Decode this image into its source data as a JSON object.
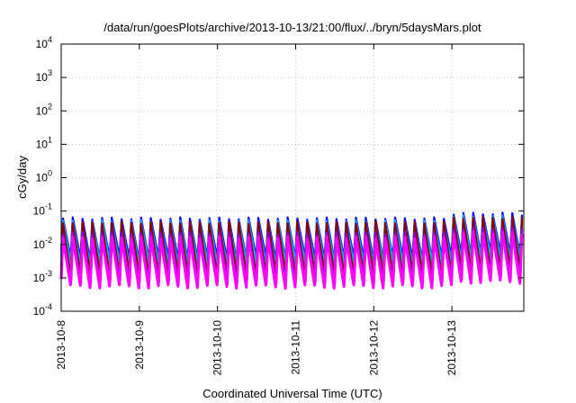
{
  "chart_data": {
    "type": "line",
    "title": "/data/run/goesPlots/archive/2013-10-13/21:00/flux/../bryn/5daysMars.plot",
    "xlabel": "Coordinated Universal Time (UTC)",
    "ylabel": "cGy/day",
    "yscale": "log",
    "ylim": [
      0.0001,
      10000
    ],
    "xlim": [
      "2013-10-08",
      "2013-10-13T22:00"
    ],
    "grid": true,
    "legend": "none",
    "y_ticks": [
      {
        "base": "10",
        "exp": "-4",
        "value": 0.0001
      },
      {
        "base": "10",
        "exp": "-3",
        "value": 0.001
      },
      {
        "base": "10",
        "exp": "-2",
        "value": 0.01
      },
      {
        "base": "10",
        "exp": "-1",
        "value": 0.1
      },
      {
        "base": "10",
        "exp": "0",
        "value": 1
      },
      {
        "base": "10",
        "exp": "1",
        "value": 10
      },
      {
        "base": "10",
        "exp": "2",
        "value": 100
      },
      {
        "base": "10",
        "exp": "3",
        "value": 1000
      },
      {
        "base": "10",
        "exp": "4",
        "value": 10000
      }
    ],
    "x_ticks": [
      "2013-10-8",
      "2013-10-9",
      "2013-10-10",
      "2013-10-11",
      "2013-10-12",
      "2013-10-13"
    ],
    "x_tick_days": [
      0,
      1,
      2,
      3,
      4,
      5
    ],
    "x_span_days": 5.92,
    "cycles_per_day": 8,
    "series": [
      {
        "color": "#0000ff",
        "peak": 0.06,
        "trough": 0.004
      },
      {
        "color": "#1e90ff",
        "peak": 0.05,
        "trough": 0.003
      },
      {
        "color": "#00bfbf",
        "peak": 0.038,
        "trough": 0.0022
      },
      {
        "color": "#2e8b57",
        "peak": 0.03,
        "trough": 0.0016
      },
      {
        "color": "#8b0000",
        "peak": 0.045,
        "trough": 0.0012
      },
      {
        "color": "#9400d3",
        "peak": 0.022,
        "trough": 0.0009
      },
      {
        "color": "#ff00ff",
        "peak": 0.016,
        "trough": 0.00055
      }
    ],
    "late_rise_factor": 1.4
  }
}
